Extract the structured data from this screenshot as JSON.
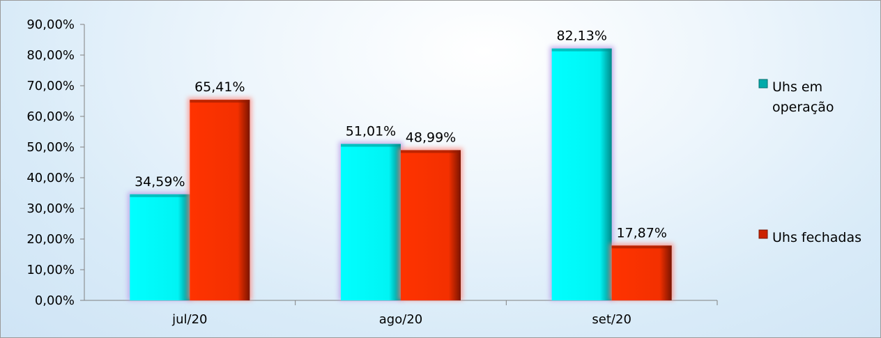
{
  "chart_data": {
    "type": "bar",
    "title": "",
    "xlabel": "",
    "ylabel": "",
    "categories": [
      "jul/20",
      "ago/20",
      "set/20"
    ],
    "series": [
      {
        "name": "Uhs em operação",
        "legend_lines": [
          "Uhs em",
          "operação"
        ],
        "values": [
          34.59,
          51.01,
          82.13
        ],
        "labels": [
          "34,59%",
          "51,01%",
          "82,13%"
        ],
        "color": "#00ffff"
      },
      {
        "name": "Uhs fechadas",
        "legend_lines": [
          "Uhs fechadas"
        ],
        "values": [
          65.41,
          48.99,
          17.87
        ],
        "labels": [
          "65,41%",
          "48,99%",
          "17,87%"
        ],
        "color": "#ff3300"
      }
    ],
    "ylim": [
      0,
      90
    ],
    "y_ticks": [
      0,
      10,
      20,
      30,
      40,
      50,
      60,
      70,
      80,
      90
    ],
    "y_tick_labels": [
      "0,00%",
      "10,00%",
      "20,00%",
      "30,00%",
      "40,00%",
      "50,00%",
      "60,00%",
      "70,00%",
      "80,00%",
      "90,00%"
    ],
    "grid": false,
    "legend_position": "right"
  }
}
